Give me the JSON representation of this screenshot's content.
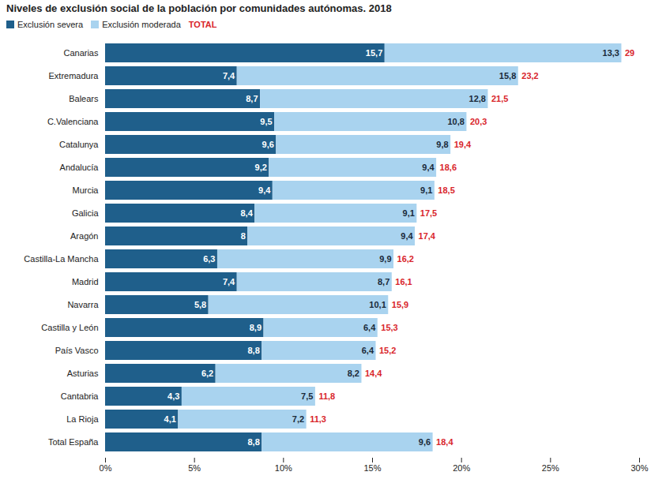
{
  "chart_data": {
    "type": "bar",
    "orientation": "horizontal",
    "stacked": true,
    "data_labels": true,
    "grid": false,
    "legend": "top-left",
    "title": "Niveles de exclusión social de la población por comunidades autónomas. 2018",
    "categories": [
      "Canarias",
      "Extremadura",
      "Balears",
      "C.Valenciana",
      "Catalunya",
      "Andalucía",
      "Murcia",
      "Galicia",
      "Aragón",
      "Castilla-La Mancha",
      "Madrid",
      "Navarra",
      "Castilla y León",
      "País Vasco",
      "Asturias",
      "Cantabria",
      "La Rioja",
      "Total España"
    ],
    "series": [
      {
        "name": "Exclusión severa",
        "color": "#1f5f8b",
        "values": [
          15.7,
          7.4,
          8.7,
          9.5,
          9.6,
          9.2,
          9.4,
          8.4,
          8,
          6.3,
          7.4,
          5.8,
          8.9,
          8.8,
          6.2,
          4.3,
          4.1,
          8.8
        ],
        "value_labels": [
          "15,7",
          "7,4",
          "8,7",
          "9,5",
          "9,6",
          "9,2",
          "9,4",
          "8,4",
          "8",
          "6,3",
          "7,4",
          "5,8",
          "8,9",
          "8,8",
          "6,2",
          "4,3",
          "4,1",
          "8,8"
        ]
      },
      {
        "name": "Exclusión moderada",
        "color": "#a9d3ef",
        "values": [
          13.3,
          15.8,
          12.8,
          10.8,
          9.8,
          9.4,
          9.1,
          9.1,
          9.4,
          9.9,
          8.7,
          10.1,
          6.4,
          6.4,
          8.2,
          7.5,
          7.2,
          9.6
        ],
        "value_labels": [
          "13,3",
          "15,8",
          "12,8",
          "10,8",
          "9,8",
          "9,4",
          "9,1",
          "9,1",
          "9,4",
          "9,9",
          "8,7",
          "10,1",
          "6,4",
          "6,4",
          "8,2",
          "7,5",
          "7,2",
          "9,6"
        ]
      }
    ],
    "totals": {
      "name": "TOTAL",
      "color": "#d9262c",
      "values": [
        29,
        23.2,
        21.5,
        20.3,
        19.4,
        18.6,
        18.5,
        17.5,
        17.4,
        16.2,
        16.1,
        15.9,
        15.3,
        15.2,
        14.4,
        11.8,
        11.3,
        18.4
      ],
      "value_labels": [
        "29",
        "23,2",
        "21,5",
        "20,3",
        "19,4",
        "18,6",
        "18,5",
        "17,5",
        "17,4",
        "16,2",
        "16,1",
        "15,9",
        "15,3",
        "15,2",
        "14,4",
        "11,8",
        "11,3",
        "18,4"
      ]
    },
    "xlim": [
      0,
      30
    ],
    "xticks": [
      {
        "value": 0,
        "label": "0%"
      },
      {
        "value": 5,
        "label": "5%"
      },
      {
        "value": 10,
        "label": "10%"
      },
      {
        "value": 15,
        "label": "15%"
      },
      {
        "value": 20,
        "label": "20%"
      },
      {
        "value": 25,
        "label": "25%"
      },
      {
        "value": 30,
        "label": "30%"
      }
    ]
  }
}
